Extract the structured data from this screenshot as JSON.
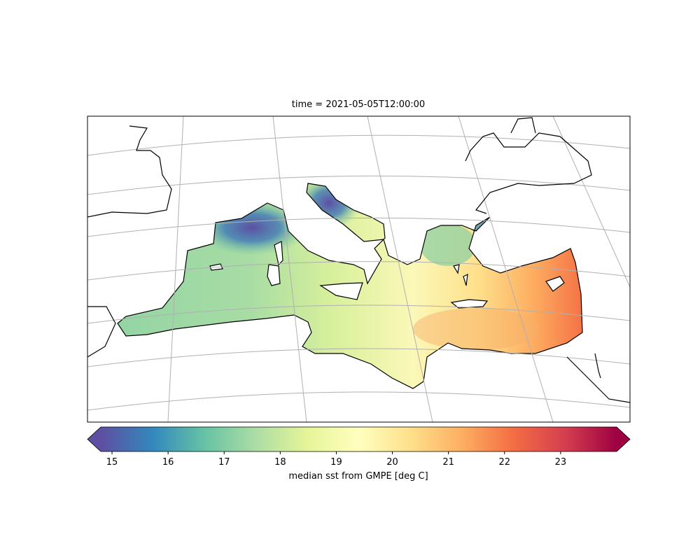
{
  "title": "time = 2021-05-05T12:00:00",
  "colorbar": {
    "label": "median sst from GMPE [deg C]",
    "lim": [
      14.8,
      24.0
    ],
    "ticks": [
      15,
      16,
      17,
      18,
      19,
      20,
      21,
      22,
      23
    ],
    "cmap": "Spectral_r",
    "extend": "both"
  }
}
